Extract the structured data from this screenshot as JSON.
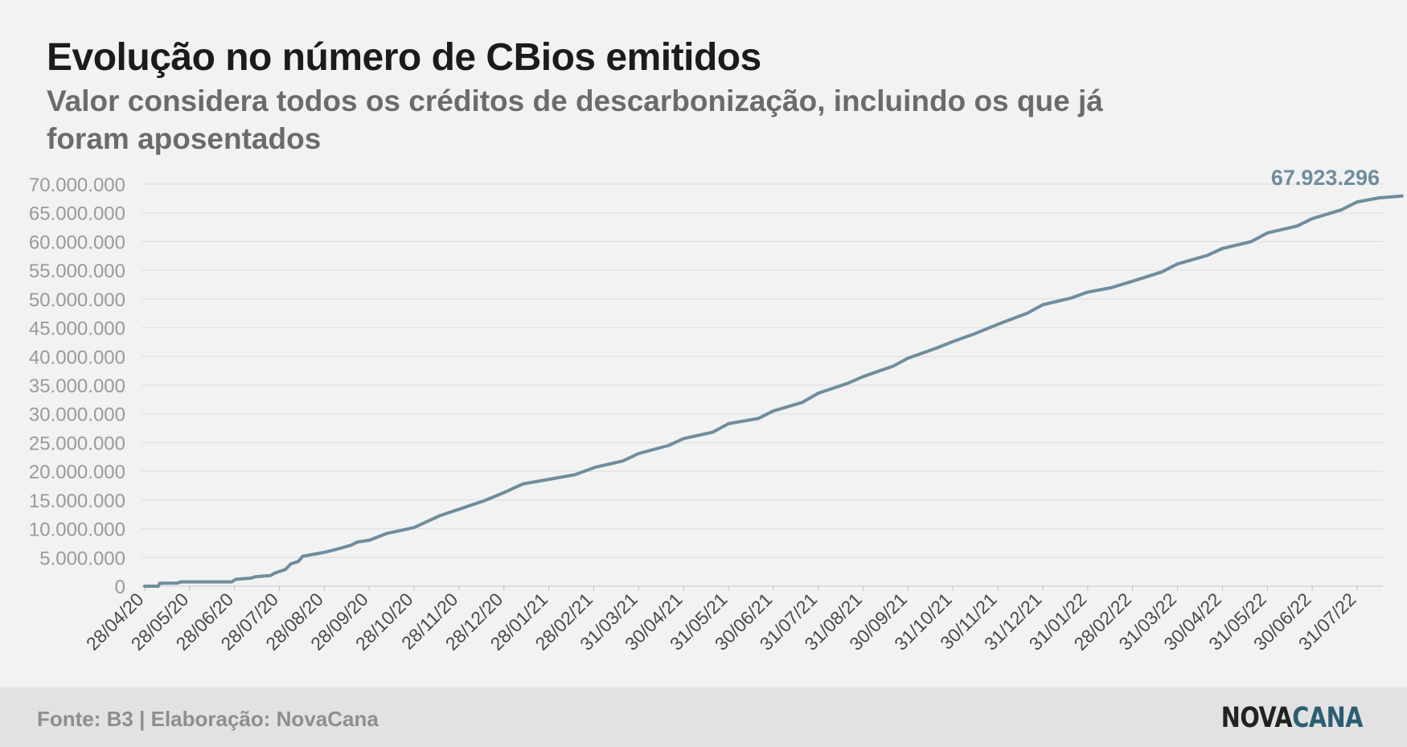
{
  "title": "Evolução no número de CBios emitidos",
  "subtitle": "Valor considera todos os créditos de descarbonização, incluindo os que já foram aposentados",
  "footer": {
    "source": "Fonte: B3 | Elaboração: NovaCana",
    "logo_part1": "NOVA",
    "logo_part2": "CANA"
  },
  "colors": {
    "line": "#6f8d9e",
    "end_label": "#6f8d9e",
    "axis_text": "#9a9a9a",
    "grid": "#dcdcdc",
    "logo_accent": "#2c5d73"
  },
  "chart_data": {
    "type": "line",
    "title": "Evolução no número de CBios emitidos",
    "subtitle": "Valor considera todos os créditos de descarbonização, incluindo os que já foram aposentados",
    "xlabel": "",
    "ylabel": "",
    "ylim": [
      0,
      70000000
    ],
    "yticks": [
      0,
      5000000,
      10000000,
      15000000,
      20000000,
      25000000,
      30000000,
      35000000,
      40000000,
      45000000,
      50000000,
      55000000,
      60000000,
      65000000,
      70000000
    ],
    "ytick_labels": [
      "0",
      "5.000.000",
      "10.000.000",
      "15.000.000",
      "20.000.000",
      "25.000.000",
      "30.000.000",
      "35.000.000",
      "40.000.000",
      "45.000.000",
      "50.000.000",
      "55.000.000",
      "60.000.000",
      "65.000.000",
      "70.000.000"
    ],
    "xtick_labels": [
      "28/04/20",
      "28/05/20",
      "28/06/20",
      "28/07/20",
      "28/08/20",
      "28/09/20",
      "28/10/20",
      "28/11/20",
      "28/12/20",
      "28/01/21",
      "28/02/21",
      "31/03/21",
      "30/04/21",
      "31/05/21",
      "30/06/21",
      "31/07/21",
      "31/08/21",
      "30/09/21",
      "31/10/21",
      "30/11/21",
      "31/12/21",
      "31/01/22",
      "28/02/22",
      "31/03/22",
      "30/04/22",
      "31/05/22",
      "30/06/22",
      "31/07/22"
    ],
    "grid": true,
    "end_label": "67.923.296",
    "series": [
      {
        "values": [
          [
            "2020-04-28",
            0
          ],
          [
            "2020-05-07",
            0
          ],
          [
            "2020-05-08",
            500000
          ],
          [
            "2020-05-20",
            550000
          ],
          [
            "2020-05-22",
            750000
          ],
          [
            "2020-06-26",
            750000
          ],
          [
            "2020-06-29",
            1200000
          ],
          [
            "2020-07-09",
            1400000
          ],
          [
            "2020-07-12",
            1650000
          ],
          [
            "2020-07-22",
            1850000
          ],
          [
            "2020-07-25",
            2300000
          ],
          [
            "2020-08-01",
            2900000
          ],
          [
            "2020-08-05",
            3900000
          ],
          [
            "2020-08-10",
            4300000
          ],
          [
            "2020-08-13",
            5200000
          ],
          [
            "2020-08-28",
            5900000
          ],
          [
            "2020-09-05",
            6400000
          ],
          [
            "2020-09-15",
            7100000
          ],
          [
            "2020-09-20",
            7700000
          ],
          [
            "2020-09-28",
            8000000
          ],
          [
            "2020-10-10",
            9200000
          ],
          [
            "2020-10-28",
            10200000
          ],
          [
            "2020-11-15",
            12300000
          ],
          [
            "2020-11-28",
            13400000
          ],
          [
            "2020-12-15",
            14900000
          ],
          [
            "2020-12-28",
            16300000
          ],
          [
            "2021-01-10",
            17800000
          ],
          [
            "2021-01-28",
            18600000
          ],
          [
            "2021-02-15",
            19400000
          ],
          [
            "2021-03-01",
            20700000
          ],
          [
            "2021-03-20",
            21800000
          ],
          [
            "2021-03-31",
            23100000
          ],
          [
            "2021-04-20",
            24500000
          ],
          [
            "2021-04-30",
            25700000
          ],
          [
            "2021-05-20",
            26800000
          ],
          [
            "2021-05-31",
            28300000
          ],
          [
            "2021-06-20",
            29200000
          ],
          [
            "2021-06-30",
            30500000
          ],
          [
            "2021-07-20",
            32000000
          ],
          [
            "2021-07-31",
            33600000
          ],
          [
            "2021-08-20",
            35300000
          ],
          [
            "2021-08-31",
            36500000
          ],
          [
            "2021-09-20",
            38300000
          ],
          [
            "2021-09-30",
            39700000
          ],
          [
            "2021-10-20",
            41500000
          ],
          [
            "2021-10-31",
            42600000
          ],
          [
            "2021-11-15",
            44000000
          ],
          [
            "2021-11-30",
            45600000
          ],
          [
            "2021-12-20",
            47500000
          ],
          [
            "2021-12-31",
            49000000
          ],
          [
            "2022-01-20",
            50200000
          ],
          [
            "2022-01-31",
            51200000
          ],
          [
            "2022-02-15",
            52000000
          ],
          [
            "2022-02-28",
            53100000
          ],
          [
            "2022-03-20",
            54700000
          ],
          [
            "2022-03-31",
            56100000
          ],
          [
            "2022-04-20",
            57600000
          ],
          [
            "2022-04-30",
            58800000
          ],
          [
            "2022-05-20",
            60000000
          ],
          [
            "2022-05-31",
            61500000
          ],
          [
            "2022-06-20",
            62700000
          ],
          [
            "2022-06-30",
            64000000
          ],
          [
            "2022-07-20",
            65500000
          ],
          [
            "2022-07-31",
            66900000
          ],
          [
            "2022-08-15",
            67600000
          ],
          [
            "2022-08-31",
            67923296
          ]
        ]
      }
    ]
  }
}
